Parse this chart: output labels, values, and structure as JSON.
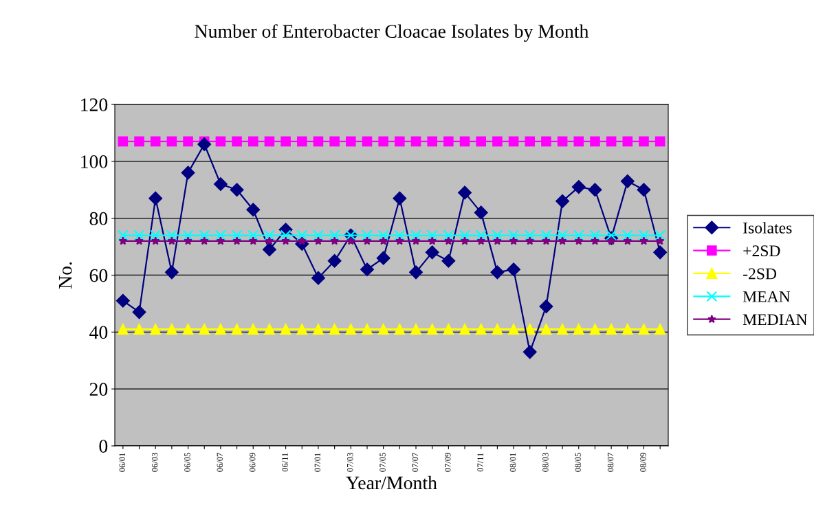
{
  "chart_data": {
    "type": "line",
    "title": "Number of Enterobacter Cloacae Isolates by Month",
    "xlabel": "Year/Month",
    "ylabel": "No.",
    "categories": [
      "06/01",
      null,
      "06/03",
      null,
      "06/05",
      null,
      "06/07",
      null,
      "06/09",
      null,
      "06/11",
      null,
      "07/01",
      null,
      "07/03",
      null,
      "07/05",
      null,
      "07/07",
      null,
      "07/09",
      null,
      "07/11",
      null,
      "08/01",
      null,
      "08/03",
      null,
      "08/05",
      null,
      "08/07",
      null,
      "08/09",
      null
    ],
    "series": [
      {
        "name": "Isolates",
        "color": "#000080",
        "marker": "diamond",
        "values": [
          51,
          47,
          87,
          61,
          96,
          106,
          92,
          90,
          83,
          69,
          76,
          71,
          59,
          65,
          74,
          62,
          66,
          87,
          61,
          68,
          65,
          89,
          82,
          61,
          62,
          33,
          49,
          86,
          91,
          90,
          73,
          93,
          90,
          68
        ]
      },
      {
        "name": "+2SD",
        "color": "#ff00ff",
        "marker": "square",
        "values": [
          107,
          107,
          107,
          107,
          107,
          107,
          107,
          107,
          107,
          107,
          107,
          107,
          107,
          107,
          107,
          107,
          107,
          107,
          107,
          107,
          107,
          107,
          107,
          107,
          107,
          107,
          107,
          107,
          107,
          107,
          107,
          107,
          107,
          107
        ]
      },
      {
        "name": "-2SD",
        "color": "#ffff00",
        "marker": "triangle",
        "values": [
          41,
          41,
          41,
          41,
          41,
          41,
          41,
          41,
          41,
          41,
          41,
          41,
          41,
          41,
          41,
          41,
          41,
          41,
          41,
          41,
          41,
          41,
          41,
          41,
          41,
          41,
          41,
          41,
          41,
          41,
          41,
          41,
          41,
          41
        ]
      },
      {
        "name": "MEAN",
        "color": "#00ffff",
        "marker": "cross",
        "values": [
          74,
          74,
          74,
          74,
          74,
          74,
          74,
          74,
          74,
          74,
          74,
          74,
          74,
          74,
          74,
          74,
          74,
          74,
          74,
          74,
          74,
          74,
          74,
          74,
          74,
          74,
          74,
          74,
          74,
          74,
          74,
          74,
          74,
          74
        ]
      },
      {
        "name": "MEDIAN",
        "color": "#800080",
        "marker": "star",
        "values": [
          72,
          72,
          72,
          72,
          72,
          72,
          72,
          72,
          72,
          72,
          72,
          72,
          72,
          72,
          72,
          72,
          72,
          72,
          72,
          72,
          72,
          72,
          72,
          72,
          72,
          72,
          72,
          72,
          72,
          72,
          72,
          72,
          72,
          72
        ]
      }
    ],
    "ylim": [
      0,
      120
    ],
    "yticks": [
      0,
      20,
      40,
      60,
      80,
      100,
      120
    ],
    "grid": "y",
    "legend": "right"
  }
}
